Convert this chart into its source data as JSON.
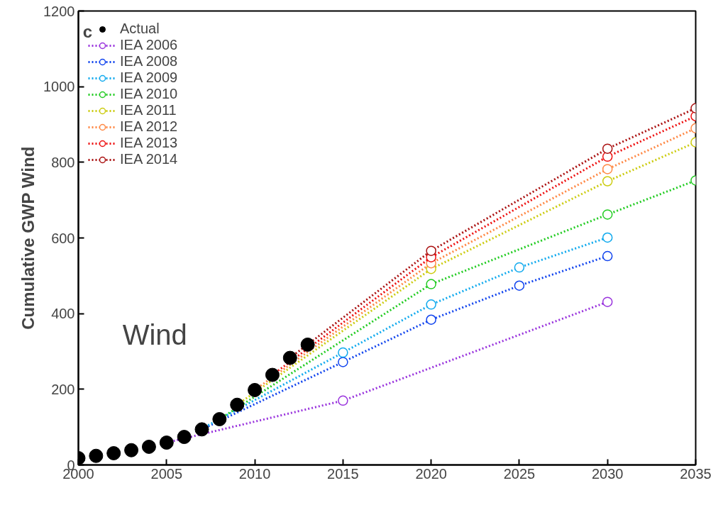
{
  "chart_data": {
    "type": "line",
    "ylabel": "Cumulative GWP Wind",
    "annotations": [
      "c",
      "Wind"
    ],
    "xlim": [
      2000,
      2035
    ],
    "xticks": [
      2000,
      2005,
      2010,
      2015,
      2020,
      2025,
      2030,
      2035
    ],
    "ylim": [
      0,
      1200
    ],
    "yticks": [
      0,
      200,
      400,
      600,
      800,
      1000,
      1200
    ],
    "grid": false,
    "legend": "top left",
    "marker": "circle",
    "line_style": "dotted",
    "series": [
      {
        "name": "Actual",
        "type": "scatter",
        "color": "#000000",
        "x": [
          2000,
          2001,
          2002,
          2003,
          2004,
          2005,
          2006,
          2007,
          2008,
          2009,
          2010,
          2011,
          2012,
          2013
        ],
        "values": [
          18,
          24,
          31,
          39,
          48,
          59,
          74,
          94,
          121,
          159,
          198,
          238,
          283,
          318
        ]
      },
      {
        "name": "IEA 2006",
        "color": "#9933dd",
        "x": [
          2005,
          2015,
          2030
        ],
        "values": [
          59,
          170,
          431
        ]
      },
      {
        "name": "IEA 2008",
        "color": "#1144ee",
        "x": [
          2007,
          2015,
          2020,
          2025,
          2030
        ],
        "values": [
          94,
          272,
          384,
          474,
          552
        ]
      },
      {
        "name": "IEA 2009",
        "color": "#11aaee",
        "x": [
          2007,
          2015,
          2020,
          2025,
          2030
        ],
        "values": [
          96,
          297,
          424,
          522,
          601
        ]
      },
      {
        "name": "IEA 2010",
        "color": "#22cc22",
        "x": [
          2008,
          2020,
          2030,
          2035
        ],
        "values": [
          121,
          478,
          662,
          752
        ]
      },
      {
        "name": "IEA 2011",
        "color": "#cccc11",
        "x": [
          2009,
          2020,
          2030,
          2035
        ],
        "values": [
          159,
          518,
          750,
          853
        ]
      },
      {
        "name": "IEA 2012",
        "color": "#ff8844",
        "x": [
          2010,
          2020,
          2030,
          2035
        ],
        "values": [
          198,
          533,
          782,
          890
        ]
      },
      {
        "name": "IEA 2013",
        "color": "#ee1111",
        "x": [
          2011,
          2020,
          2030,
          2035
        ],
        "values": [
          238,
          549,
          815,
          922
        ]
      },
      {
        "name": "IEA 2014",
        "color": "#aa1111",
        "x": [
          2012,
          2020,
          2030,
          2035
        ],
        "values": [
          283,
          566,
          836,
          943
        ]
      }
    ]
  }
}
